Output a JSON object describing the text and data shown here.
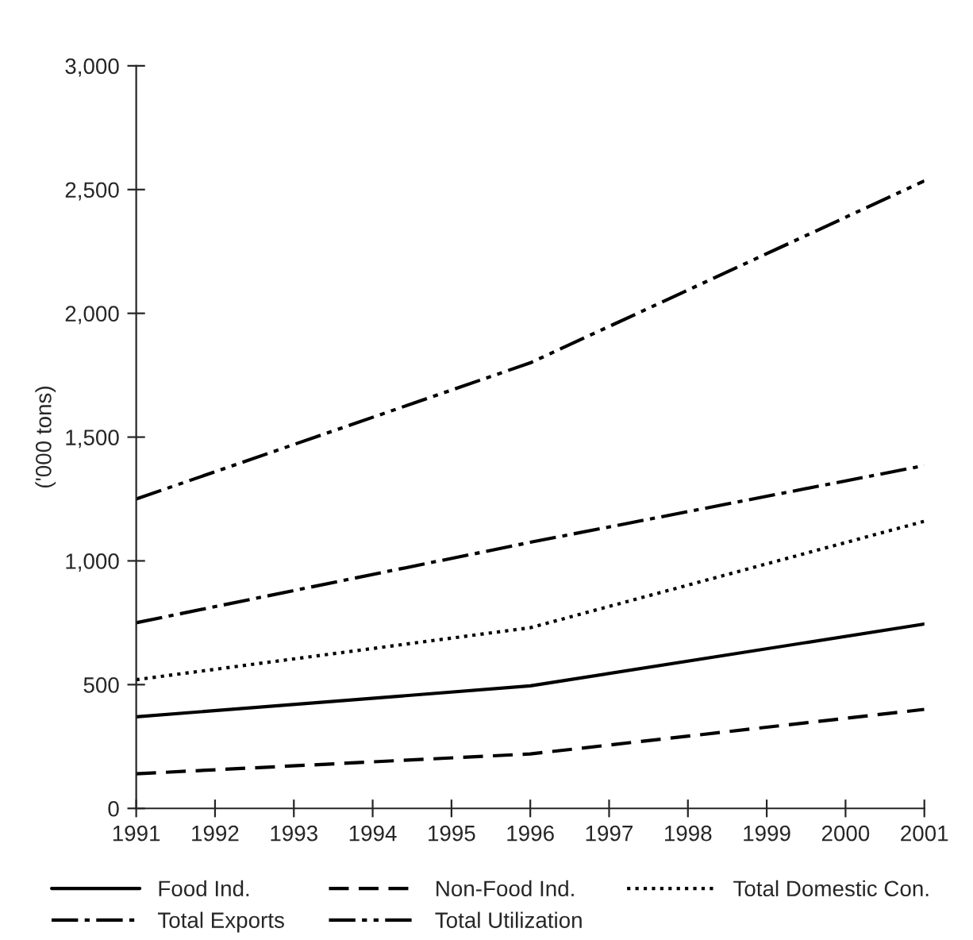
{
  "chart_data": {
    "type": "line",
    "ylabel": "('000 tons)",
    "x": [
      1991,
      1996,
      2001
    ],
    "xlim": [
      1991,
      2001
    ],
    "xticks": [
      1991,
      1992,
      1993,
      1994,
      1995,
      1996,
      1997,
      1998,
      1999,
      2000,
      2001
    ],
    "ylim": [
      0,
      3000
    ],
    "yticks": [
      {
        "value": 0,
        "label": "0"
      },
      {
        "value": 500,
        "label": "500"
      },
      {
        "value": 1000,
        "label": "1,000"
      },
      {
        "value": 1500,
        "label": "1,500"
      },
      {
        "value": 2000,
        "label": "2,000"
      },
      {
        "value": 2500,
        "label": "2,500"
      },
      {
        "value": 3000,
        "label": "3,000"
      }
    ],
    "grid": false,
    "legend": "bottom",
    "marker": "none",
    "series": [
      {
        "name": "Food Ind.",
        "color": "#000000",
        "line_style": "solid",
        "values": [
          370,
          495,
          745
        ]
      },
      {
        "name": "Non-Food Ind.",
        "color": "#000000",
        "line_style": "dashed",
        "values": [
          140,
          220,
          400
        ]
      },
      {
        "name": "Total Domestic Con.",
        "color": "#000000",
        "line_style": "dotted",
        "values": [
          520,
          730,
          1160
        ]
      },
      {
        "name": "Total Exports",
        "color": "#000000",
        "line_style": "dashdot",
        "values": [
          750,
          1075,
          1385
        ]
      },
      {
        "name": "Total Utilization",
        "color": "#000000",
        "line_style": "dashdotdot",
        "values": [
          1250,
          1800,
          2535
        ]
      }
    ]
  }
}
